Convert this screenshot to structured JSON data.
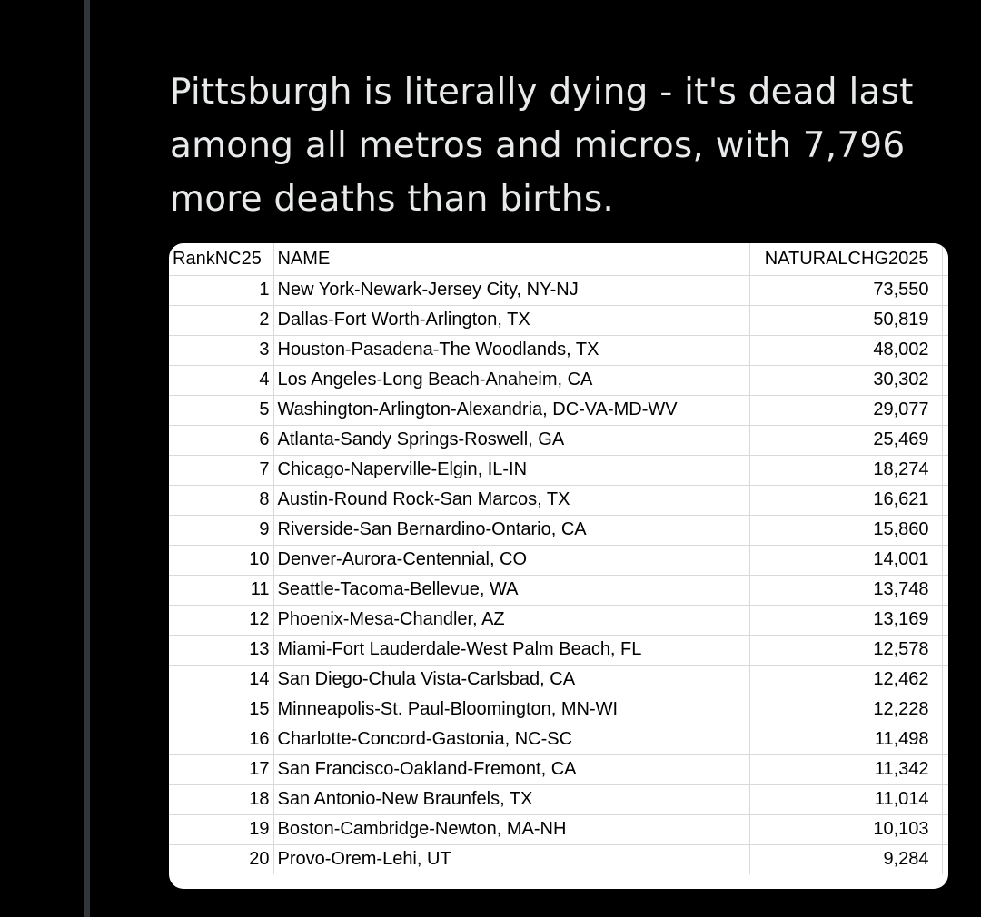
{
  "tweet": {
    "text": "Pittsburgh is literally dying - it's dead last\namong all metros and micros, with 7,796\nmore deaths than births."
  },
  "table": {
    "headers": {
      "rank": "RankNC25",
      "name": "NAME",
      "value": "NATURALCHG2025"
    },
    "rows": [
      {
        "rank": "1",
        "name": "New York-Newark-Jersey City, NY-NJ",
        "value": "73,550"
      },
      {
        "rank": "2",
        "name": "Dallas-Fort Worth-Arlington, TX",
        "value": "50,819"
      },
      {
        "rank": "3",
        "name": "Houston-Pasadena-The Woodlands, TX",
        "value": "48,002"
      },
      {
        "rank": "4",
        "name": "Los Angeles-Long Beach-Anaheim, CA",
        "value": "30,302"
      },
      {
        "rank": "5",
        "name": "Washington-Arlington-Alexandria, DC-VA-MD-WV",
        "value": "29,077"
      },
      {
        "rank": "6",
        "name": "Atlanta-Sandy Springs-Roswell, GA",
        "value": "25,469"
      },
      {
        "rank": "7",
        "name": "Chicago-Naperville-Elgin, IL-IN",
        "value": "18,274"
      },
      {
        "rank": "8",
        "name": "Austin-Round Rock-San Marcos, TX",
        "value": "16,621"
      },
      {
        "rank": "9",
        "name": "Riverside-San Bernardino-Ontario, CA",
        "value": "15,860"
      },
      {
        "rank": "10",
        "name": "Denver-Aurora-Centennial, CO",
        "value": "14,001"
      },
      {
        "rank": "11",
        "name": "Seattle-Tacoma-Bellevue, WA",
        "value": "13,748"
      },
      {
        "rank": "12",
        "name": "Phoenix-Mesa-Chandler, AZ",
        "value": "13,169"
      },
      {
        "rank": "13",
        "name": "Miami-Fort Lauderdale-West Palm Beach, FL",
        "value": "12,578"
      },
      {
        "rank": "14",
        "name": "San Diego-Chula Vista-Carlsbad, CA",
        "value": "12,462"
      },
      {
        "rank": "15",
        "name": "Minneapolis-St. Paul-Bloomington, MN-WI",
        "value": "12,228"
      },
      {
        "rank": "16",
        "name": "Charlotte-Concord-Gastonia, NC-SC",
        "value": "11,498"
      },
      {
        "rank": "17",
        "name": "San Francisco-Oakland-Fremont, CA",
        "value": "11,342"
      },
      {
        "rank": "18",
        "name": "San Antonio-New Braunfels, TX",
        "value": "11,014"
      },
      {
        "rank": "19",
        "name": "Boston-Cambridge-Newton, MA-NH",
        "value": "10,103"
      },
      {
        "rank": "20",
        "name": "Provo-Orem-Lehi, UT",
        "value": "9,284"
      }
    ]
  }
}
